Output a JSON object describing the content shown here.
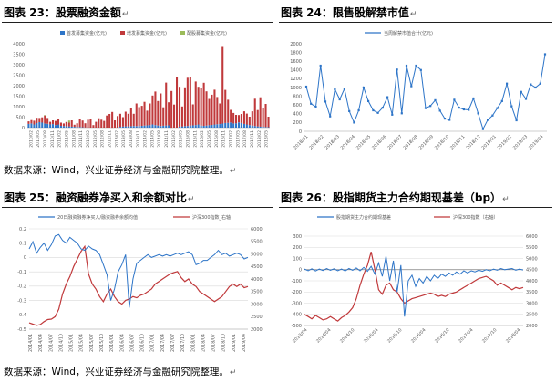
{
  "titles": {
    "c23": "图表 23：股票融资金额",
    "c24": "图表 24：限售股解禁市值",
    "c25": "图表 25：融资融券净买入和余额对比",
    "c26": "图表 26：股指期货主力合约期现基差（bp）"
  },
  "paragraph_mark": "↵",
  "sources": {
    "top": "数据来源：Wind，兴业证券经济与金融研究院整理。",
    "bottom": "数据来源：Wind，兴业证券经济与金融研究院整理。"
  },
  "colors": {
    "blue": "#2e75c8",
    "red": "#c0393b",
    "olive": "#9bbb59",
    "axis": "#bfbfbf",
    "grid": "#d9d9d9",
    "tick": "#595959"
  },
  "chart_data": [
    {
      "id": "c23",
      "type": "bar",
      "legend": [
        "首发募集资金(亿元)",
        "增发募集资金(亿元)",
        "配股募集资金(亿元)"
      ],
      "ylim": [
        0,
        4000
      ],
      "yticks": [
        0,
        500,
        1000,
        1500,
        2000,
        2500,
        3000,
        3500,
        4000
      ],
      "xticks": [
        "2010/02",
        "2010/05",
        "2010/08",
        "2010/11",
        "2011/02",
        "2011/05",
        "2011/08",
        "2011/11",
        "2012/02",
        "2012/05",
        "2012/08",
        "2012/11",
        "2013/02",
        "2013/05",
        "2013/08",
        "2013/11",
        "2014/02",
        "2014/05",
        "2014/08",
        "2014/11",
        "2015/02",
        "2015/05",
        "2015/08",
        "2015/11",
        "2016/02",
        "2016/05",
        "2016/08",
        "2016/11",
        "2017/02",
        "2017/05",
        "2017/08",
        "2017/11",
        "2018/02",
        "2018/05"
      ],
      "series": [
        {
          "name": "首发募集资金(亿元)",
          "values": [
            180,
            200,
            150,
            220,
            260,
            240,
            200,
            180,
            160,
            170,
            120,
            150,
            90,
            80,
            70,
            60,
            50,
            40,
            30,
            30,
            20,
            10,
            0,
            0,
            0,
            0,
            0,
            0,
            0,
            0,
            0,
            0,
            0,
            0,
            40,
            50,
            60,
            60,
            70,
            80,
            70,
            80,
            90,
            100,
            110,
            120,
            150,
            120,
            100,
            80,
            90,
            100,
            110,
            0,
            0,
            0,
            50,
            60,
            70,
            80,
            100,
            110,
            120,
            150,
            100,
            90,
            100,
            120,
            130,
            150,
            160,
            170,
            200,
            220,
            230,
            250,
            200,
            210,
            250,
            220,
            180,
            150,
            120,
            100,
            80,
            60,
            50,
            40,
            30,
            20
          ]
        },
        {
          "name": "增发募集资金(亿元)",
          "values": [
            120,
            160,
            180,
            250,
            200,
            250,
            380,
            280,
            120,
            180,
            200,
            250,
            150,
            120,
            200,
            180,
            300,
            100,
            180,
            380,
            320,
            200,
            380,
            400,
            120,
            280,
            450,
            380,
            320,
            580,
            650,
            750,
            350,
            550,
            620,
            450,
            700,
            600,
            880,
            580,
            1080,
            900,
            950,
            1130,
            700,
            1030,
            1380,
            1600,
            1170,
            1550,
            880,
            2050,
            1100,
            1750,
            1100,
            2400,
            1900,
            950,
            1850,
            2300,
            2330,
            1000,
            2080,
            1800,
            1800,
            2050,
            1630,
            1250,
            1440,
            1660,
            1300,
            980,
            3650,
            1580,
            1100,
            600,
            500,
            400,
            350,
            430,
            600,
            520,
            400,
            680,
            1300,
            780,
            1400,
            900,
            1100,
            500
          ]
        },
        {
          "name": "配股募集资金(亿元)",
          "values": [
            0,
            0,
            0,
            0,
            0,
            0,
            20,
            0,
            0,
            0,
            0,
            0,
            0,
            0,
            0,
            100,
            0,
            0,
            0,
            0,
            0,
            0,
            0,
            0,
            0,
            0,
            0,
            0,
            0,
            0,
            0,
            0,
            0,
            0,
            0,
            0,
            0,
            0,
            0,
            0,
            0,
            0,
            0,
            0,
            0,
            0,
            0,
            0,
            0,
            0,
            0,
            0,
            0,
            0,
            0,
            0,
            0,
            0,
            0,
            0,
            0,
            0,
            0,
            0,
            0,
            0,
            0,
            0,
            0,
            0,
            0,
            0,
            0,
            0,
            0,
            0,
            0,
            0,
            0,
            0,
            0,
            0,
            0,
            0,
            0,
            0,
            0,
            0,
            0,
            0
          ]
        }
      ]
    },
    {
      "id": "c24",
      "type": "line",
      "legend": [
        "当周解禁市值合计(亿元)"
      ],
      "ylim": [
        0,
        2000
      ],
      "yticks": [
        0,
        200,
        400,
        600,
        800,
        1000,
        1200,
        1400,
        1600,
        1800,
        2000
      ],
      "xticks": [
        "2018/01",
        "2018/02",
        "2018/03",
        "2018/04",
        "2018/05",
        "2018/06",
        "2018/07",
        "2018/08",
        "2018/09",
        "2018/10",
        "2018/11",
        "2018/12",
        "2019/01",
        "2019/02",
        "2019/03",
        "2019/04"
      ],
      "series": [
        {
          "name": "当周解禁市值合计(亿元)",
          "values": [
            1020,
            630,
            560,
            1500,
            680,
            340,
            960,
            730,
            970,
            460,
            200,
            480,
            1000,
            690,
            480,
            420,
            540,
            780,
            380,
            1410,
            410,
            1500,
            1030,
            1500,
            1400,
            530,
            580,
            710,
            470,
            290,
            260,
            720,
            540,
            500,
            490,
            750,
            410,
            50,
            260,
            360,
            530,
            690,
            1090,
            570,
            250,
            900,
            740,
            1070,
            1000,
            1090,
            1760
          ]
        }
      ]
    },
    {
      "id": "c25",
      "type": "line",
      "legend": [
        "20日融资融券净买入/融资融券余额均值",
        "沪深300指数_右轴"
      ],
      "ylim_left": [
        -0.5,
        0.2
      ],
      "yticks_left": [
        "0.2",
        "0.1",
        "0",
        "-0.1",
        "-0.2",
        "-0.3",
        "-0.4",
        "-0.5"
      ],
      "ylim_right": [
        2000,
        6000
      ],
      "yticks_right": [
        "6000",
        "5500",
        "5000",
        "4500",
        "4000",
        "3500",
        "3000",
        "2500",
        "2000"
      ],
      "xticks": [
        "2014/01",
        "2014/04",
        "2014/07",
        "2014/10",
        "2015/01",
        "2015/04",
        "2015/07",
        "2015/10",
        "2016/01",
        "2016/04",
        "2016/07",
        "2016/10",
        "2017/01",
        "2017/04",
        "2017/07",
        "2017/10",
        "2018/01",
        "2018/04",
        "2018/07",
        "2018/10",
        "2019/01",
        "2019/04"
      ],
      "series": [
        {
          "name": "20日融资融券净买入/融资融券余额均值",
          "values": [
            0.06,
            0.11,
            0.03,
            0.07,
            0.1,
            0.05,
            0.09,
            0.15,
            0.16,
            0.12,
            0.1,
            0.14,
            0.12,
            0.1,
            0.06,
            0.05,
            0.08,
            0.06,
            0.05,
            0.02,
            -0.05,
            -0.12,
            -0.3,
            -0.22,
            -0.1,
            -0.05,
            0.02,
            -0.35,
            -0.15,
            -0.04,
            -0.02,
            0.0,
            0.02,
            0.0,
            0.01,
            0.02,
            0.01,
            0.02,
            0.01,
            0.02,
            0.03,
            0.02,
            0.03,
            0.04,
            0.02,
            -0.05,
            -0.04,
            -0.02,
            -0.02,
            0.0,
            0.02,
            0.05,
            0.02,
            0.03,
            0.01,
            0.02,
            0.03,
            0.02,
            -0.01,
            0.0
          ]
        },
        {
          "name": "沪深300指数_右轴",
          "values": [
            2250,
            2200,
            2150,
            2180,
            2300,
            2380,
            2400,
            2500,
            2800,
            3400,
            3800,
            4100,
            4500,
            4800,
            5100,
            5300,
            4200,
            3800,
            3600,
            3300,
            3100,
            3400,
            3600,
            3300,
            3100,
            3000,
            3150,
            3200,
            3300,
            3250,
            3350,
            3400,
            3500,
            3600,
            3800,
            3900,
            4000,
            4100,
            4200,
            4250,
            4300,
            4050,
            3900,
            4000,
            3800,
            3700,
            3500,
            3400,
            3300,
            3200,
            3100,
            3200,
            3300,
            3500,
            3700,
            3800,
            3700,
            3800,
            3650,
            3700
          ]
        }
      ]
    },
    {
      "id": "c26",
      "type": "line",
      "legend": [
        "股指期货主力合约期现基差",
        "沪深300指数（右轴）"
      ],
      "ylim_left": [
        -500,
        300
      ],
      "yticks_left": [
        "300",
        "200",
        "100",
        "0",
        "-100",
        "-200",
        "-300",
        "-400",
        "-500"
      ],
      "ylim_right": [
        2000,
        6000
      ],
      "yticks_right": [
        "6000",
        "5500",
        "5000",
        "4500",
        "4000",
        "3500",
        "3000",
        "2500",
        "2000"
      ],
      "xticks": [
        "2013/04",
        "2014/04",
        "2014/10",
        "2015/04",
        "2015/10",
        "2016/04",
        "2016/10",
        "2017/04",
        "2017/10",
        "2018/04"
      ],
      "series": [
        {
          "name": "股指期货主力合约期现基差",
          "values": [
            5,
            -10,
            8,
            -12,
            5,
            -8,
            10,
            -5,
            8,
            -10,
            5,
            -12,
            10,
            -5,
            15,
            -10,
            20,
            -15,
            30,
            -40,
            60,
            -60,
            120,
            -100,
            80,
            -200,
            40,
            -420,
            -100,
            -50,
            -150,
            -80,
            -120,
            -60,
            -100,
            -50,
            -80,
            -40,
            -60,
            -30,
            -50,
            -20,
            -40,
            -10,
            -30,
            -10,
            -20,
            -5,
            -15,
            0,
            -10,
            5,
            -5,
            10,
            0,
            5,
            10,
            -5,
            5,
            -3
          ]
        },
        {
          "name": "沪深300指数（右轴）",
          "values": [
            2500,
            2400,
            2300,
            2450,
            2350,
            2250,
            2300,
            2400,
            2300,
            2200,
            2350,
            2450,
            2600,
            2800,
            3200,
            3800,
            4300,
            4700,
            5300,
            4500,
            3600,
            3400,
            3800,
            3900,
            3600,
            3500,
            3200,
            3000,
            3100,
            3200,
            3250,
            3300,
            3350,
            3400,
            3450,
            3400,
            3300,
            3350,
            3300,
            3400,
            3450,
            3500,
            3600,
            3700,
            3800,
            3900,
            4000,
            4100,
            4150,
            4200,
            4100,
            4000,
            3800,
            3900,
            3800,
            3700,
            3600,
            3700,
            3650,
            3700
          ]
        }
      ]
    }
  ]
}
